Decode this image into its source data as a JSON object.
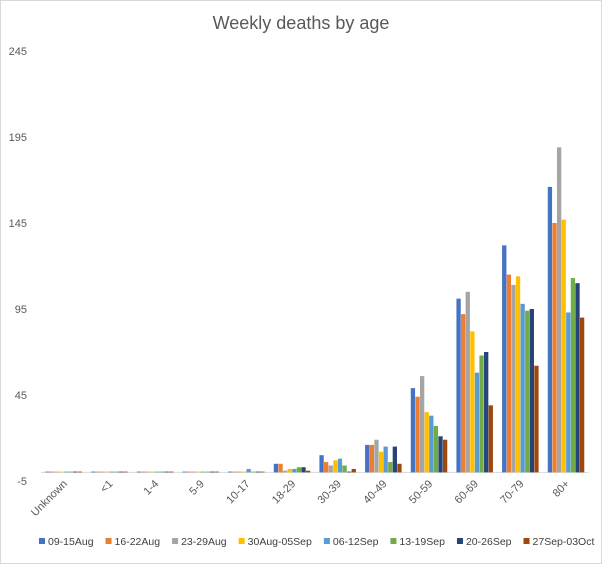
{
  "chart_data": {
    "type": "bar",
    "title": "Weekly deaths by age",
    "xlabel": "",
    "ylabel": "",
    "ylim": [
      -5,
      245
    ],
    "yticks": [
      -5,
      45,
      95,
      145,
      195,
      245
    ],
    "grid": false,
    "legend_position": "bottom",
    "categories": [
      "Unknown",
      "<1",
      "1-4",
      "5-9",
      "10-17",
      "18-29",
      "30-39",
      "40-49",
      "50-59",
      "60-69",
      "70-79",
      "80+"
    ],
    "series": [
      {
        "name": "09-15Aug",
        "color": "#4472C4",
        "values": [
          0,
          0,
          0,
          0,
          0,
          5,
          10,
          16,
          49,
          101,
          132,
          166
        ]
      },
      {
        "name": "16-22Aug",
        "color": "#ED7D31",
        "values": [
          0,
          0,
          0,
          0,
          0,
          5,
          6,
          16,
          44,
          92,
          115,
          145
        ]
      },
      {
        "name": "23-29Aug",
        "color": "#A5A5A5",
        "values": [
          0,
          0,
          0,
          0,
          0,
          1,
          4,
          19,
          56,
          105,
          109,
          189
        ]
      },
      {
        "name": "30Aug-05Sep",
        "color": "#FFC000",
        "values": [
          0,
          0,
          0,
          0,
          0,
          2,
          7,
          12,
          35,
          82,
          114,
          147
        ]
      },
      {
        "name": "06-12Sep",
        "color": "#5B9BD5",
        "values": [
          0,
          0,
          0,
          0,
          2,
          2,
          8,
          15,
          33,
          58,
          98,
          93
        ]
      },
      {
        "name": "13-19Sep",
        "color": "#70AD47",
        "values": [
          0,
          0,
          0,
          0,
          0,
          3,
          4,
          6,
          27,
          68,
          94,
          113
        ]
      },
      {
        "name": "20-26Sep",
        "color": "#264478",
        "values": [
          0,
          0,
          0,
          0,
          0,
          3,
          0,
          15,
          21,
          70,
          95,
          110
        ]
      },
      {
        "name": "27Sep-03Oct",
        "color": "#9E480E",
        "values": [
          0,
          0,
          0,
          0,
          0,
          1,
          2,
          5,
          19,
          39,
          62,
          90
        ]
      }
    ]
  }
}
